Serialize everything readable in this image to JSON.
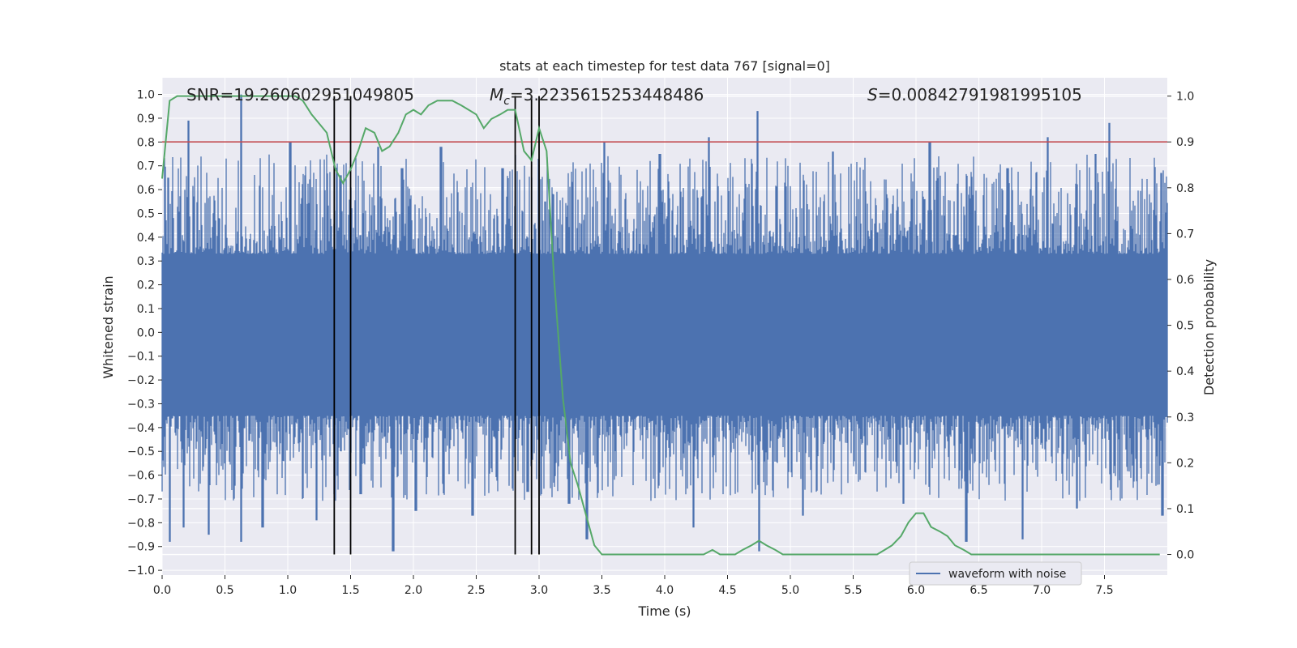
{
  "chart_data": {
    "type": "line",
    "title": "stats at each timestep for test data 767 [signal=0]",
    "xlabel": "Time (s)",
    "ylabel": "Whitened strain",
    "ylabel_right": "Detection probability",
    "xlim": [
      0.0,
      8.0
    ],
    "ylim": [
      -1.02,
      1.07
    ],
    "ylim_right": [
      -0.045,
      1.04
    ],
    "grid": true,
    "x_ticks": [
      "0.0",
      "0.5",
      "1.0",
      "1.5",
      "2.0",
      "2.5",
      "3.0",
      "3.5",
      "4.0",
      "4.5",
      "5.0",
      "5.5",
      "6.0",
      "6.5",
      "7.0",
      "7.5"
    ],
    "y_ticks": [
      "1.0",
      "0.9",
      "0.8",
      "0.7",
      "0.6",
      "0.5",
      "0.4",
      "0.3",
      "0.2",
      "0.1",
      "0.0",
      "−0.1",
      "−0.2",
      "−0.3",
      "−0.4",
      "−0.5",
      "−0.6",
      "−0.7",
      "−0.8",
      "−0.9",
      "−1.0"
    ],
    "y_ticks_right": [
      "1.0",
      "0.9",
      "0.8",
      "0.7",
      "0.6",
      "0.5",
      "0.4",
      "0.3",
      "0.2",
      "0.1",
      "0.0"
    ],
    "annotations": {
      "snr": "SNR=19.260602951049805",
      "mc_symbol": "M",
      "mc_subscript": "c",
      "mc_value": "=3.2235615253448486",
      "s_symbol": "S",
      "s_value": "=0.00842791981995105"
    },
    "legend": {
      "label": "waveform with noise",
      "position": "lower-right"
    },
    "threshold": {
      "value": 0.9,
      "axis": "right",
      "color": "#c44e52"
    },
    "markers_x": [
      1.37,
      1.5,
      2.81,
      2.94,
      3.0
    ],
    "marker_range_right": [
      0.0,
      1.0
    ],
    "waveform_with_noise": {
      "color": "#4c72b0",
      "band": [
        -0.35,
        0.33
      ],
      "peaks_pos": [
        [
          0.05,
          0.65
        ],
        [
          0.21,
          0.89
        ],
        [
          0.63,
          1.0
        ],
        [
          1.02,
          0.8
        ],
        [
          1.42,
          0.66
        ],
        [
          1.72,
          0.78
        ],
        [
          1.91,
          0.69
        ],
        [
          2.22,
          0.78
        ],
        [
          2.71,
          0.69
        ],
        [
          3.05,
          0.55
        ],
        [
          3.52,
          0.8
        ],
        [
          3.96,
          0.75
        ],
        [
          4.35,
          0.82
        ],
        [
          4.74,
          0.93
        ],
        [
          5.34,
          0.76
        ],
        [
          6.11,
          0.8
        ],
        [
          6.73,
          0.69
        ],
        [
          7.05,
          0.82
        ],
        [
          7.43,
          0.75
        ],
        [
          7.54,
          0.88
        ],
        [
          7.95,
          0.67
        ]
      ],
      "peaks_neg": [
        [
          0.06,
          -0.88
        ],
        [
          0.17,
          -0.82
        ],
        [
          0.37,
          -0.85
        ],
        [
          0.63,
          -0.88
        ],
        [
          0.8,
          -0.82
        ],
        [
          1.23,
          -0.79
        ],
        [
          1.58,
          -0.68
        ],
        [
          1.84,
          -0.92
        ],
        [
          2.02,
          -0.75
        ],
        [
          2.47,
          -0.77
        ],
        [
          2.91,
          -0.67
        ],
        [
          3.24,
          -0.72
        ],
        [
          3.38,
          -0.87
        ],
        [
          4.23,
          -0.82
        ],
        [
          4.75,
          -0.92
        ],
        [
          5.1,
          -0.77
        ],
        [
          5.9,
          -0.72
        ],
        [
          6.4,
          -0.88
        ],
        [
          6.85,
          -0.87
        ],
        [
          7.28,
          -0.74
        ],
        [
          7.96,
          -0.77
        ]
      ]
    },
    "detection_probability": {
      "color": "#55a868",
      "x": [
        0.0,
        0.06,
        0.12,
        0.19,
        0.25,
        0.31,
        0.38,
        0.44,
        0.5,
        0.56,
        0.62,
        0.69,
        0.75,
        0.81,
        0.88,
        0.94,
        1.0,
        1.06,
        1.12,
        1.19,
        1.25,
        1.31,
        1.38,
        1.44,
        1.5,
        1.56,
        1.62,
        1.69,
        1.75,
        1.81,
        1.88,
        1.94,
        2.0,
        2.06,
        2.12,
        2.19,
        2.25,
        2.31,
        2.38,
        2.44,
        2.5,
        2.56,
        2.62,
        2.69,
        2.75,
        2.81,
        2.88,
        2.94,
        3.0,
        3.06,
        3.12,
        3.19,
        3.25,
        3.31,
        3.38,
        3.44,
        3.5,
        3.56,
        3.62,
        3.69,
        3.75,
        3.81,
        3.88,
        3.94,
        4.0,
        4.06,
        4.12,
        4.19,
        4.25,
        4.31,
        4.38,
        4.44,
        4.5,
        4.56,
        4.62,
        4.69,
        4.75,
        4.81,
        4.88,
        4.94,
        5.0,
        5.06,
        5.12,
        5.19,
        5.25,
        5.31,
        5.38,
        5.44,
        5.5,
        5.56,
        5.62,
        5.69,
        5.75,
        5.81,
        5.88,
        5.94,
        6.0,
        6.06,
        6.12,
        6.19,
        6.25,
        6.31,
        6.38,
        6.44,
        6.5,
        6.56,
        6.62,
        6.69,
        6.75,
        6.81,
        6.88,
        6.94,
        7.0,
        7.06,
        7.12,
        7.19,
        7.25,
        7.31,
        7.38,
        7.44,
        7.5,
        7.56,
        7.62,
        7.69,
        7.75,
        7.81,
        7.88,
        7.94
      ],
      "y": [
        0.82,
        0.99,
        1.0,
        1.0,
        1.0,
        1.0,
        1.0,
        1.0,
        1.0,
        1.0,
        1.0,
        1.0,
        1.0,
        1.0,
        1.0,
        1.0,
        1.0,
        1.0,
        0.99,
        0.96,
        0.94,
        0.92,
        0.84,
        0.81,
        0.84,
        0.88,
        0.93,
        0.92,
        0.88,
        0.89,
        0.92,
        0.96,
        0.97,
        0.96,
        0.98,
        0.99,
        0.99,
        0.99,
        0.98,
        0.97,
        0.96,
        0.93,
        0.95,
        0.96,
        0.97,
        0.97,
        0.88,
        0.86,
        0.93,
        0.88,
        0.6,
        0.34,
        0.2,
        0.15,
        0.08,
        0.02,
        0.0,
        0.0,
        0.0,
        0.0,
        0.0,
        0.0,
        0.0,
        0.0,
        0.0,
        0.0,
        0.0,
        0.0,
        0.0,
        0.0,
        0.01,
        0.0,
        0.0,
        0.0,
        0.01,
        0.02,
        0.03,
        0.02,
        0.01,
        0.0,
        0.0,
        0.0,
        0.0,
        0.0,
        0.0,
        0.0,
        0.0,
        0.0,
        0.0,
        0.0,
        0.0,
        0.0,
        0.01,
        0.02,
        0.04,
        0.07,
        0.09,
        0.09,
        0.06,
        0.05,
        0.04,
        0.02,
        0.01,
        0.0,
        0.0,
        0.0,
        0.0,
        0.0,
        0.0,
        0.0,
        0.0,
        0.0,
        0.0,
        0.0,
        0.0,
        0.0,
        0.0,
        0.0,
        0.0,
        0.0,
        0.0,
        0.0,
        0.0,
        0.0,
        0.0,
        0.0,
        0.0,
        0.0
      ]
    }
  }
}
